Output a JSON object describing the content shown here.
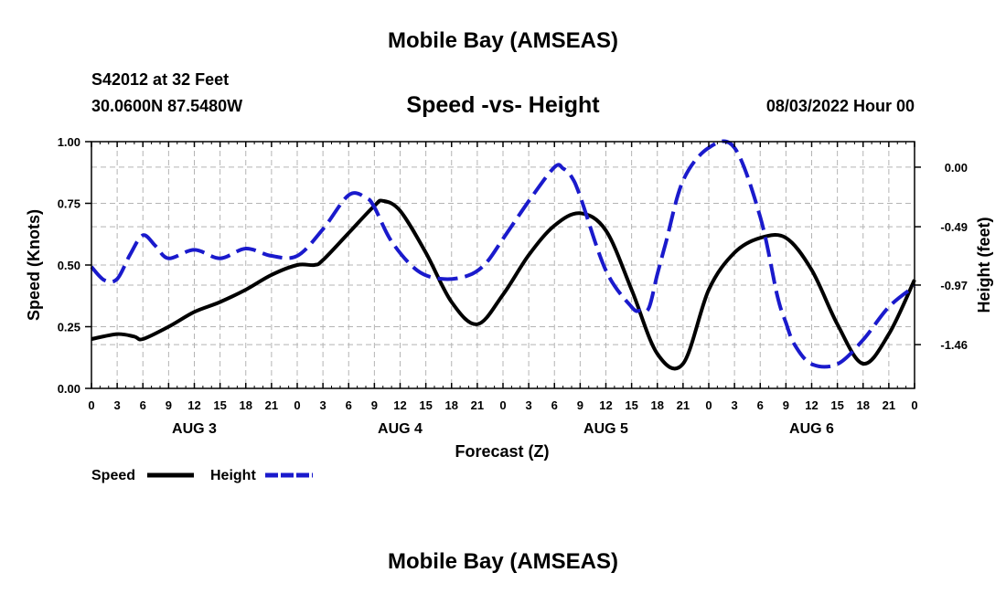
{
  "page": {
    "title_top": "Mobile Bay (AMSEAS)",
    "title_bottom": "Mobile Bay (AMSEAS)"
  },
  "station": {
    "id_line": "S42012 at 32 Feet",
    "coords": "30.0600N  87.5480W",
    "date": "08/03/2022 Hour 00"
  },
  "chart_data": {
    "type": "line",
    "title": "Speed -vs- Height",
    "xlabel": "Forecast (Z)",
    "ylabel": "Speed (Knots)",
    "y2label": "Height (feet)",
    "grid": true,
    "x_unit": "hours from 08/03/2022 00Z",
    "xlim": [
      0,
      96
    ],
    "ylim": [
      0,
      1
    ],
    "y2lim": [
      -1.82,
      0.21
    ],
    "x_ticks": [
      0,
      3,
      6,
      9,
      12,
      15,
      18,
      21,
      24,
      27,
      30,
      33,
      36,
      39,
      42,
      45,
      48,
      51,
      54,
      57,
      60,
      63,
      66,
      69,
      72,
      75,
      78,
      81,
      84,
      87,
      90,
      93,
      96
    ],
    "x_tick_labels": [
      "0",
      "3",
      "6",
      "9",
      "12",
      "15",
      "18",
      "21",
      "0",
      "3",
      "6",
      "9",
      "12",
      "15",
      "18",
      "21",
      "0",
      "3",
      "6",
      "9",
      "12",
      "15",
      "18",
      "21",
      "0",
      "3",
      "6",
      "9",
      "12",
      "15",
      "18",
      "21",
      "0"
    ],
    "day_labels": [
      {
        "label": "AUG 3",
        "hour": 12
      },
      {
        "label": "AUG 4",
        "hour": 36
      },
      {
        "label": "AUG 5",
        "hour": 60
      },
      {
        "label": "AUG 6",
        "hour": 84
      }
    ],
    "y_ticks": [
      0,
      0.25,
      0.5,
      0.75,
      1.0
    ],
    "y_tick_labels": [
      "0.00",
      "0.25",
      "0.50",
      "0.75",
      "1.00"
    ],
    "y2_ticks": [
      0.0,
      -0.49,
      -0.97,
      -1.46
    ],
    "y2_tick_labels": [
      "0.00",
      "-0.49",
      "-0.97",
      "-1.46"
    ],
    "series": [
      {
        "name": "Speed",
        "axis": "left",
        "color": "#000000",
        "dash": "solid",
        "x": [
          0,
          3,
          5,
          6,
          9,
          12,
          15,
          18,
          21,
          24,
          26,
          27,
          30,
          33,
          34,
          36,
          39,
          42,
          45,
          48,
          51,
          54,
          57,
          60,
          63,
          66,
          69,
          72,
          75,
          78,
          81,
          84,
          87,
          90,
          93,
          96
        ],
        "values": [
          0.2,
          0.22,
          0.21,
          0.2,
          0.25,
          0.31,
          0.35,
          0.4,
          0.46,
          0.5,
          0.5,
          0.52,
          0.63,
          0.74,
          0.76,
          0.72,
          0.55,
          0.35,
          0.26,
          0.38,
          0.54,
          0.66,
          0.71,
          0.64,
          0.4,
          0.14,
          0.1,
          0.4,
          0.55,
          0.61,
          0.61,
          0.48,
          0.26,
          0.1,
          0.22,
          0.44
        ]
      },
      {
        "name": "Height",
        "axis": "right",
        "color": "#1a1acc",
        "dash": "dashed",
        "x": [
          0,
          1.5,
          3,
          4.5,
          6,
          7.5,
          9,
          12,
          15,
          18,
          21,
          24,
          27,
          30,
          32,
          33,
          35,
          38,
          41,
          44,
          46,
          48,
          51,
          54,
          55,
          56,
          57,
          60,
          63,
          64,
          65,
          66,
          67,
          69,
          72,
          75,
          78,
          80,
          81,
          82,
          84,
          87,
          90,
          93,
          96
        ],
        "values": [
          -0.82,
          -0.93,
          -0.92,
          -0.72,
          -0.56,
          -0.65,
          -0.75,
          -0.68,
          -0.75,
          -0.67,
          -0.73,
          -0.73,
          -0.51,
          -0.23,
          -0.25,
          -0.33,
          -0.61,
          -0.85,
          -0.92,
          -0.89,
          -0.79,
          -0.59,
          -0.28,
          0.0,
          -0.01,
          -0.08,
          -0.24,
          -0.85,
          -1.15,
          -1.18,
          -1.16,
          -0.88,
          -0.62,
          -0.11,
          0.16,
          0.16,
          -0.41,
          -1.06,
          -1.28,
          -1.46,
          -1.62,
          -1.62,
          -1.42,
          -1.15,
          -0.98
        ]
      }
    ],
    "legend": [
      {
        "label": "Speed",
        "color": "#000000",
        "dash": "solid"
      },
      {
        "label": "Height",
        "color": "#1a1acc",
        "dash": "dashed"
      }
    ],
    "legend_position": "bottom-left"
  }
}
